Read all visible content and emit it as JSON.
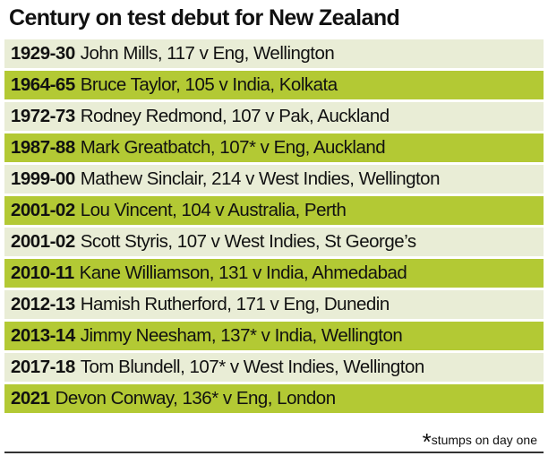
{
  "title": "Century on test debut for New Zealand",
  "rows": [
    {
      "season": "1929-30",
      "details": "John Mills, 117 v Eng, Wellington"
    },
    {
      "season": "1964-65",
      "details": "Bruce Taylor, 105 v India, Kolkata"
    },
    {
      "season": "1972-73",
      "details": "Rodney Redmond, 107 v Pak, Auckland"
    },
    {
      "season": "1987-88",
      "details": "Mark Greatbatch, 107* v Eng, Auckland"
    },
    {
      "season": "1999-00",
      "details": "Mathew Sinclair, 214 v West Indies, Wellington"
    },
    {
      "season": "2001-02",
      "details": "Lou Vincent, 104 v Australia, Perth"
    },
    {
      "season": "2001-02",
      "details": "Scott Styris, 107 v West Indies, St George’s"
    },
    {
      "season": "2010-11",
      "details": "Kane Williamson, 131 v India, Ahmedabad"
    },
    {
      "season": "2012-13",
      "details": "Hamish Rutherford, 171 v Eng, Dunedin"
    },
    {
      "season": "2013-14",
      "details": "Jimmy Neesham, 137* v India, Wellington"
    },
    {
      "season": "2017-18",
      "details": "Tom Blundell, 107* v West Indies, Wellington"
    },
    {
      "season": "2021",
      "details": "Devon Conway, 136* v Eng, London"
    }
  ],
  "footnote": {
    "marker": "*",
    "text": "stumps on day one"
  }
}
